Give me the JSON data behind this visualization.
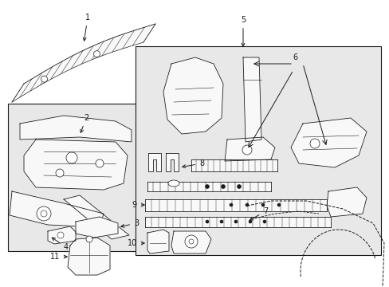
{
  "bg_color": "#ffffff",
  "box_fill": "#e8e8e8",
  "line_color": "#1a1a1a",
  "fig_width": 4.89,
  "fig_height": 3.6,
  "dpi": 100,
  "label_fs": 7,
  "arrow_lw": 0.7,
  "part_lw": 0.6,
  "part_fill": "#f8f8f8"
}
